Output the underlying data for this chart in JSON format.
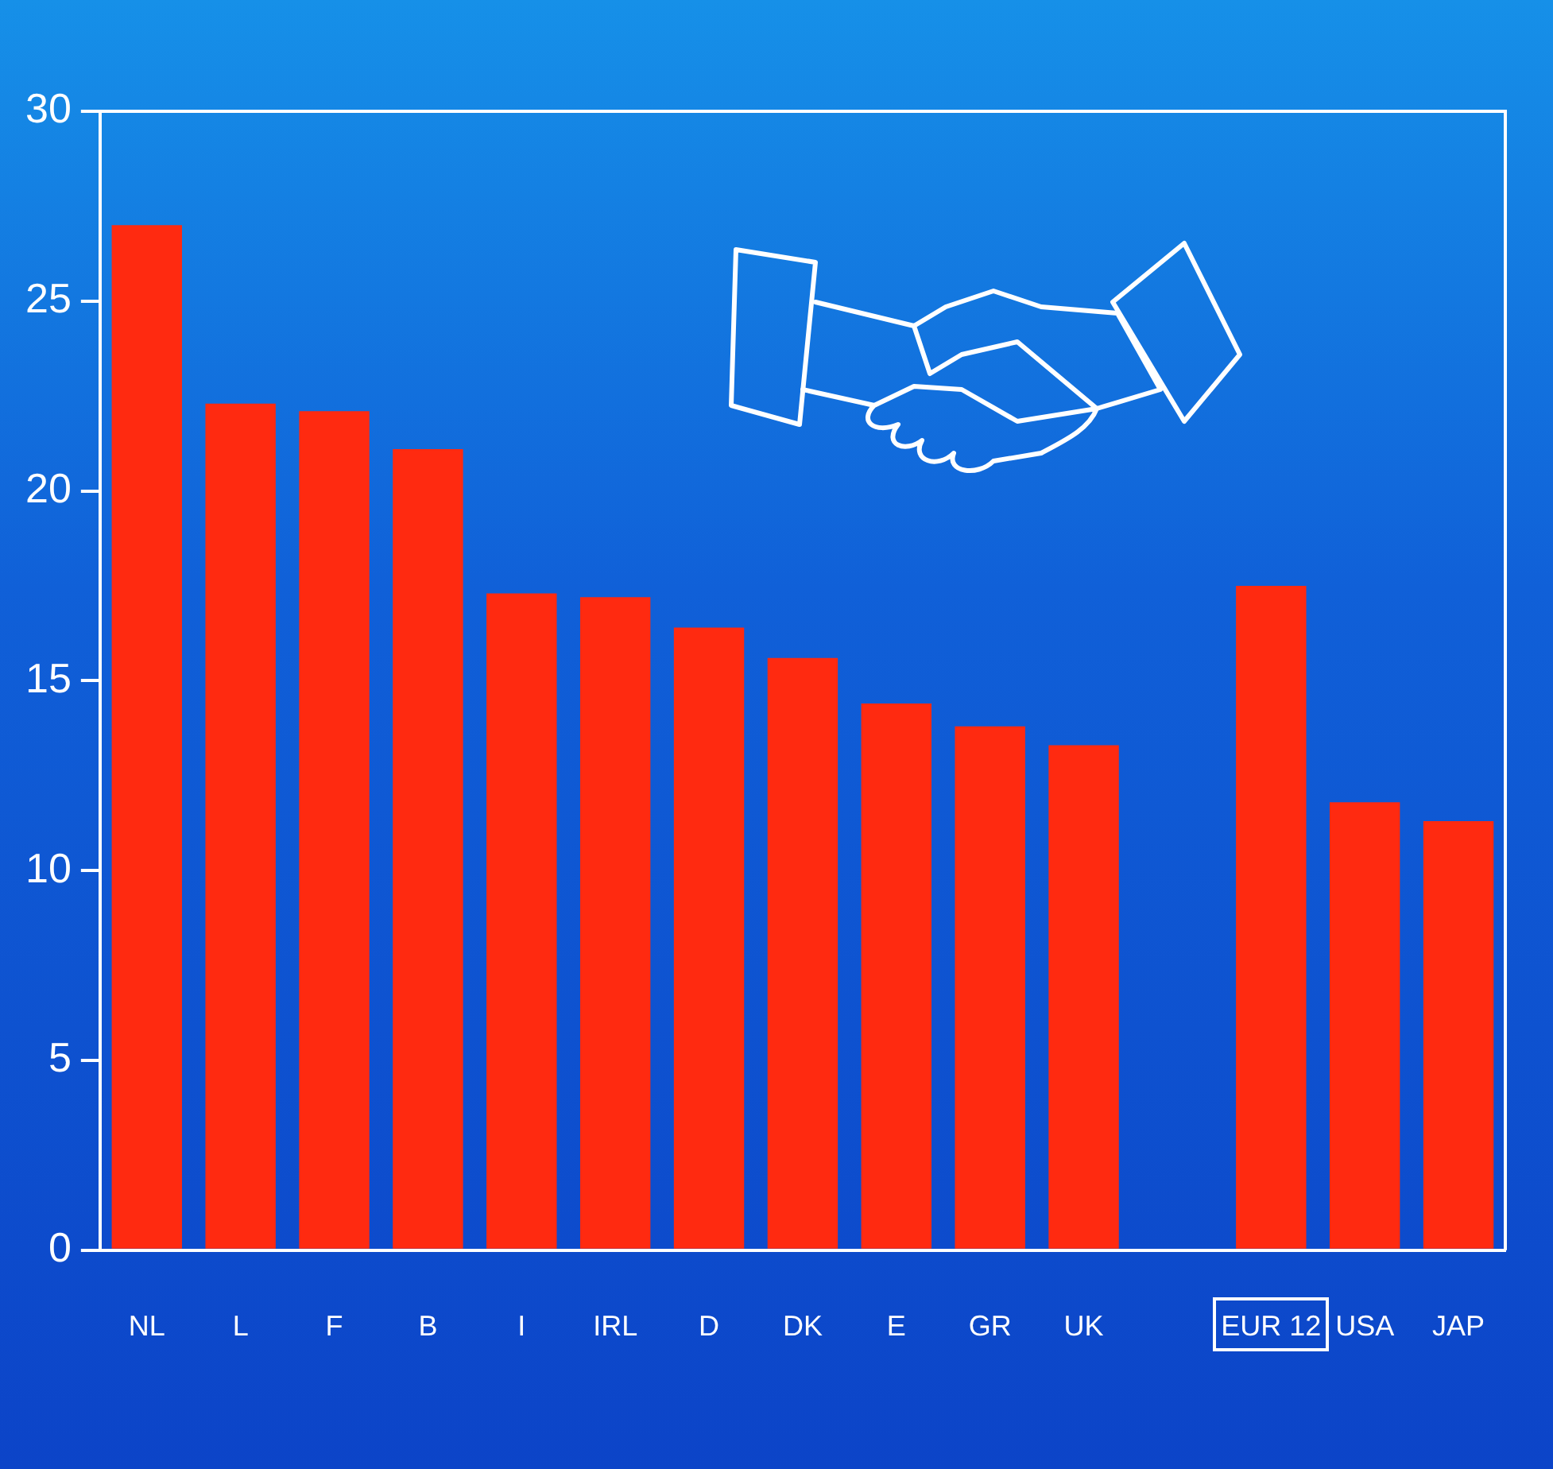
{
  "chart_data": {
    "type": "bar",
    "categories": [
      "NL",
      "L",
      "F",
      "B",
      "I",
      "IRL",
      "D",
      "DK",
      "E",
      "GR",
      "UK",
      null,
      "EUR 12",
      "USA",
      "JAP"
    ],
    "values": [
      27.0,
      22.3,
      22.1,
      21.1,
      17.3,
      17.2,
      16.4,
      15.6,
      14.4,
      13.8,
      13.3,
      null,
      17.5,
      11.8,
      11.3
    ],
    "color": "#ff2a10",
    "ylim": [
      0,
      30
    ],
    "yticks": [
      0,
      5,
      10,
      15,
      20,
      25,
      30
    ],
    "grid": false,
    "legend": false
  }
}
